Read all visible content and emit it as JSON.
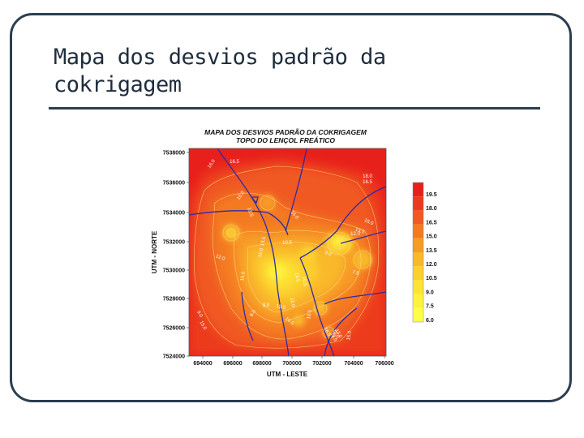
{
  "slide": {
    "title_line1": "Mapa dos desvios padrão da",
    "title_line2": "cokrigagem"
  },
  "map": {
    "title_line1": "MAPA DOS DESVIOS PADRÃO DA COKRIGAGEM",
    "title_line2": "TOPO DO LENÇOL FREÁTICO",
    "y_axis_label": "UTM - NORTE",
    "x_axis_label": "UTM - LESTE",
    "y_ticks": [
      "7538000",
      "7536000",
      "7534000",
      "7532000",
      "7530000",
      "7528000",
      "7526000",
      "7524000"
    ],
    "x_ticks": [
      "694000",
      "696000",
      "698000",
      "700000",
      "702000",
      "704000",
      "706000"
    ],
    "contour_labels": [
      "16.0",
      "16.5",
      "18.0",
      "16.5",
      "15.0",
      "13.5",
      "16.0",
      "15.0",
      "13.5",
      "12.0",
      "13.5",
      "12.0",
      "10.5",
      "9.0",
      "12.0",
      "15.0",
      "13.5",
      "10.5",
      "7.5",
      "9.0",
      "13.5",
      "12.0",
      "10.5",
      "9.0",
      "9.0",
      "15.0",
      "16.5",
      "16.5",
      "13.5",
      "12.0",
      "13.5",
      "15.0"
    ],
    "legend": {
      "values": [
        "19.5",
        "18.0",
        "16.5",
        "15.0",
        "13.5",
        "12.0",
        "10.5",
        "9.0",
        "7.5",
        "6.0"
      ],
      "colors": [
        "#e8201c",
        "#ec3a1e",
        "#f05a20",
        "#f47a22",
        "#f79a26",
        "#f9b82a",
        "#fbd02e",
        "#fde434",
        "#fef23c",
        "#ffff46"
      ]
    }
  }
}
